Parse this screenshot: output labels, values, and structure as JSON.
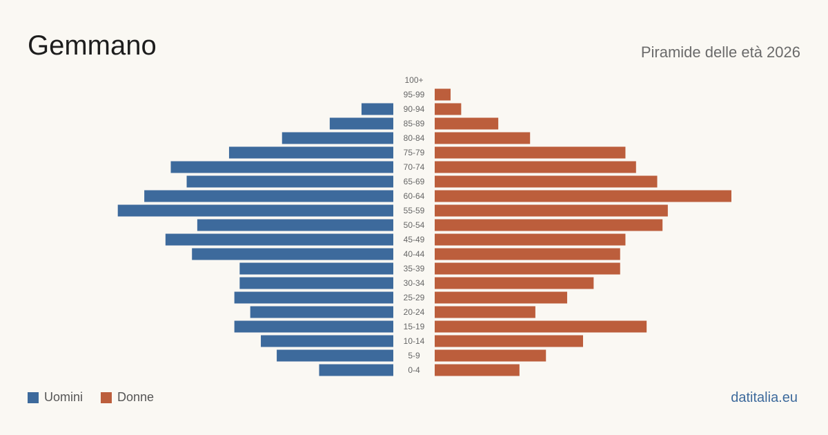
{
  "header": {
    "title": "Gemmano",
    "subtitle": "Piramide delle età 2026"
  },
  "legend": {
    "men_label": "Uomini",
    "women_label": "Donne"
  },
  "brand": "datitalia.eu",
  "colors": {
    "men": "#3d6a9c",
    "women": "#bc5e3c",
    "background": "#faf8f3",
    "tick_text": "#666666"
  },
  "chart_data": {
    "type": "bar",
    "orientation": "horizontal-pyramid",
    "categories": [
      "100+",
      "95-99",
      "90-94",
      "85-89",
      "80-84",
      "75-79",
      "70-74",
      "65-69",
      "60-64",
      "55-59",
      "50-54",
      "45-49",
      "40-44",
      "35-39",
      "30-34",
      "25-29",
      "20-24",
      "15-19",
      "10-14",
      "5-9",
      "0-4"
    ],
    "series": [
      {
        "name": "Uomini",
        "values": [
          0,
          0,
          6,
          12,
          21,
          31,
          42,
          39,
          47,
          52,
          37,
          43,
          38,
          29,
          29,
          30,
          27,
          30,
          25,
          22,
          14
        ]
      },
      {
        "name": "Donne",
        "values": [
          0,
          3,
          5,
          12,
          18,
          36,
          38,
          42,
          56,
          44,
          43,
          36,
          35,
          35,
          30,
          25,
          19,
          40,
          28,
          21,
          16
        ]
      }
    ],
    "xlim": [
      0,
      56
    ],
    "legend_position": "bottom-left",
    "grid": false
  }
}
